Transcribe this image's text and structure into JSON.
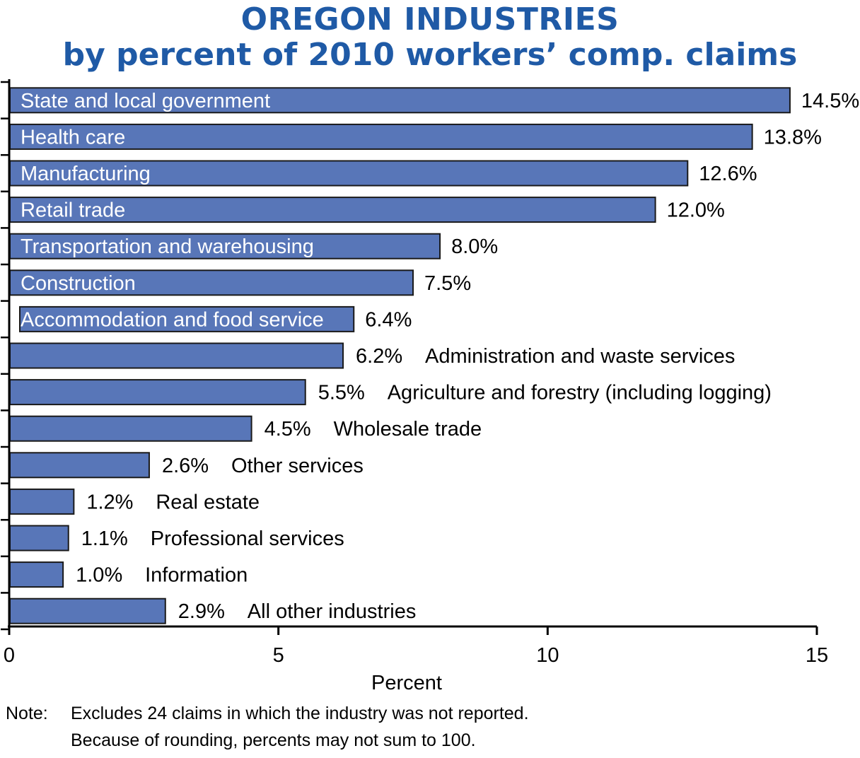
{
  "title_line1": "OREGON INDUSTRIES",
  "title_line2": "by percent of 2010 workers’ comp. claims",
  "colors": {
    "title": "#1f5aa6",
    "bar_fill": "#5876b8",
    "bar_stroke": "#1a1a1a",
    "inside_label": "#ffffff",
    "text": "#000000"
  },
  "note": {
    "prefix": "Note:",
    "line1": "Excludes 24 claims in which the industry was not reported.",
    "line2": "Because of rounding, percents may not sum to 100."
  },
  "chart_data": {
    "type": "bar",
    "orientation": "horizontal",
    "xlabel": "Percent",
    "ylabel": "",
    "xlim": [
      0,
      15
    ],
    "xticks": [
      0,
      5,
      10,
      15
    ],
    "grid": false,
    "categories": [
      "State and local government",
      "Health care",
      "Manufacturing",
      "Retail trade",
      "Transportation and warehousing",
      "Construction",
      "Accommodation and food service",
      "Administration and waste services",
      "Agriculture and forestry (including logging)",
      "Wholesale trade",
      "Other services",
      "Real estate",
      "Professional services",
      "Information",
      "All other industries"
    ],
    "values": [
      14.5,
      13.8,
      12.6,
      12.0,
      8.0,
      7.5,
      6.4,
      6.2,
      5.5,
      4.5,
      2.6,
      1.2,
      1.1,
      1.0,
      2.9
    ],
    "value_labels": [
      "14.5%",
      "13.8%",
      "12.6%",
      "12.0%",
      "8.0%",
      "7.5%",
      "6.4%",
      "6.2%",
      "5.5%",
      "4.5%",
      "2.6%",
      "1.2%",
      "1.1%",
      "1.0%",
      "2.9%"
    ],
    "label_inside_bar": [
      true,
      true,
      true,
      true,
      true,
      true,
      true,
      false,
      false,
      false,
      false,
      false,
      false,
      false,
      false
    ]
  }
}
